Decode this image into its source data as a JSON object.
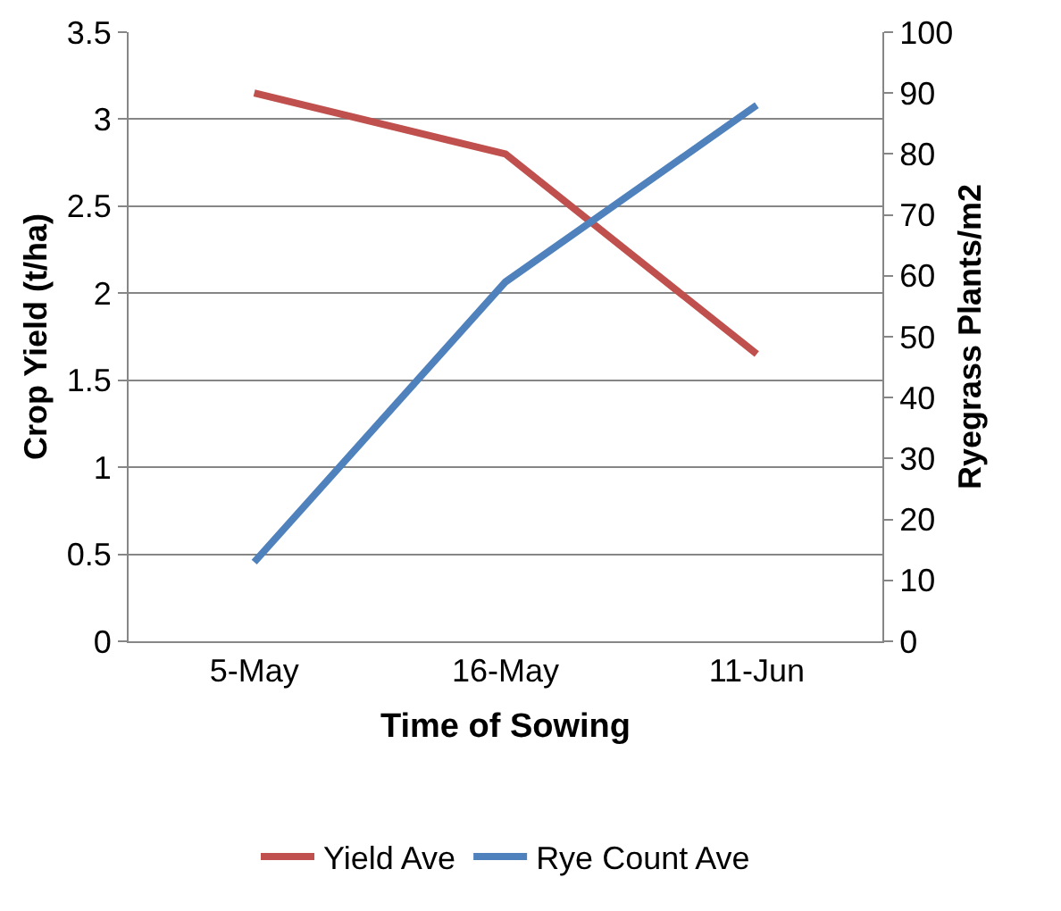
{
  "chart_data": {
    "type": "line",
    "xlabel": "Time of Sowing",
    "ylabel": "Crop Yield (t/ha)",
    "y2label": "Ryegrass Plants/m2",
    "categories": [
      "5-May",
      "16-May",
      "11-Jun"
    ],
    "series": [
      {
        "name": "Yield Ave",
        "color": "#c0504d",
        "values": [
          3.15,
          2.8,
          1.65
        ]
      },
      {
        "name": "Rye Count Ave",
        "color": "#4f81bd",
        "values": [
          13,
          59,
          88
        ],
        "axis": "y2"
      }
    ],
    "ylim": [
      0,
      3.5
    ],
    "yticks": [
      0,
      0.5,
      1,
      1.5,
      2,
      2.5,
      3,
      3.5
    ],
    "y2lim": [
      0,
      100
    ],
    "y2ticks": [
      0,
      10,
      20,
      30,
      40,
      50,
      60,
      70,
      80,
      90,
      100
    ],
    "grid": "y",
    "legend": "bottom",
    "marker": "none",
    "line_style": "solid"
  }
}
